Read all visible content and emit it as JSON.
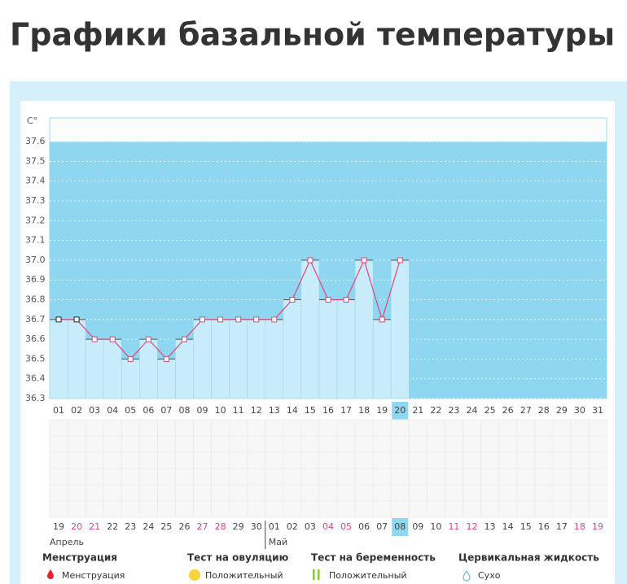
{
  "page_title": "Графики базальной температуры",
  "chart_data": {
    "type": "bar",
    "y_label": "C°",
    "categories": [
      "01",
      "02",
      "03",
      "04",
      "05",
      "06",
      "07",
      "08",
      "09",
      "10",
      "11",
      "12",
      "13",
      "14",
      "15",
      "16",
      "17",
      "18",
      "19",
      "20",
      "21",
      "22",
      "23",
      "24",
      "25",
      "26",
      "27",
      "28",
      "29",
      "30",
      "31"
    ],
    "values": [
      36.7,
      36.7,
      36.6,
      36.6,
      36.5,
      36.6,
      36.5,
      36.6,
      36.7,
      36.7,
      36.7,
      36.7,
      36.7,
      36.8,
      37.0,
      36.8,
      36.8,
      37.0,
      36.7,
      37.0,
      null,
      null,
      null,
      null,
      null,
      null,
      null,
      null,
      null,
      null,
      null
    ],
    "color": "#c9ecfa",
    "line_color": "#e0457a",
    "background_color": "#8fd6f1",
    "ylim": [
      36.3,
      37.72
    ],
    "yticks": [
      36.3,
      36.4,
      36.5,
      36.6,
      36.7,
      36.8,
      36.9,
      {
        "value": 37,
        "label": "37.0"
      },
      37.1,
      37.2,
      37.3,
      37.4,
      37.5,
      37.6
    ],
    "grid": true,
    "calendar_dates": [
      "19",
      "20",
      "21",
      "22",
      "23",
      "24",
      "25",
      "26",
      "27",
      "28",
      "29",
      "30",
      "01",
      "02",
      "03",
      "04",
      "05",
      "06",
      "07",
      "08",
      "09",
      "10",
      "11",
      "12",
      "13",
      "14",
      "15",
      "16",
      "17",
      "18",
      "19"
    ],
    "weekend": [
      false,
      true,
      true,
      false,
      false,
      false,
      false,
      false,
      true,
      true,
      false,
      false,
      false,
      false,
      false,
      true,
      true,
      false,
      false,
      false,
      false,
      false,
      true,
      true,
      false,
      false,
      false,
      false,
      false,
      true,
      true
    ],
    "months": [
      "Апрель",
      "Май"
    ]
  },
  "legend": [
    {
      "title": "Менструация",
      "item": "Менструация"
    },
    {
      "title": "Тест на овуляцию",
      "item": "Положительный"
    },
    {
      "title": "Тест на беременность",
      "item": "Положительный"
    },
    {
      "title": "Цервикальная жидкость",
      "item": "Сухо"
    }
  ]
}
